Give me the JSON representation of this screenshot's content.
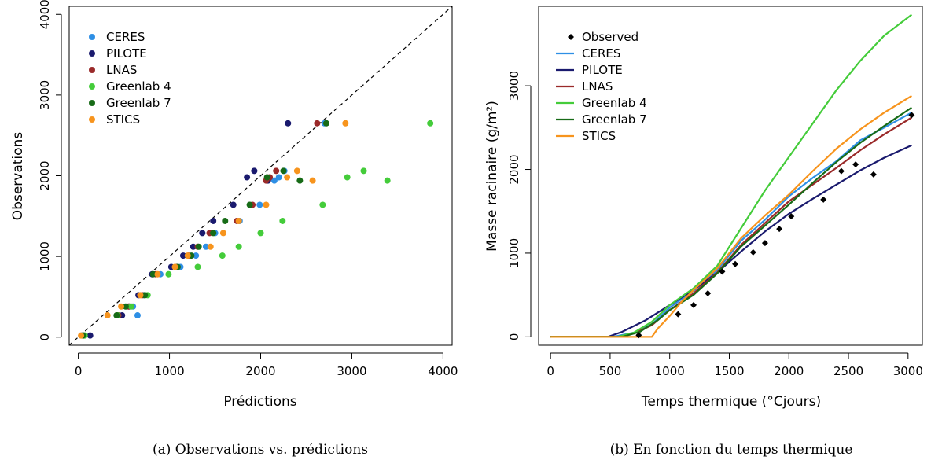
{
  "chart_data": [
    {
      "type": "scatter",
      "xlabel": "Prédictions",
      "ylabel": "Observations",
      "caption": "(a)  Observations vs. prédictions",
      "xlim": [
        -100,
        4100
      ],
      "ylim": [
        -100,
        4100
      ],
      "xticks": [
        0,
        1000,
        2000,
        3000,
        4000
      ],
      "yticks": [
        0,
        1000,
        2000,
        3000,
        4000
      ],
      "legend_position": "top-left",
      "reference_line": "y = x, dashed",
      "observations": [
        20,
        270,
        380,
        520,
        780,
        870,
        1010,
        1120,
        1290,
        1440,
        1640,
        1940,
        1980,
        2060,
        2650
      ],
      "series": [
        {
          "name": "CERES",
          "color": "#2e8fe5",
          "x": [
            40,
            650,
            600,
            720,
            900,
            1120,
            1290,
            1400,
            1500,
            1770,
            1990,
            2150,
            2200,
            2260,
            2700
          ]
        },
        {
          "name": "PILOTE",
          "color": "#1a1a6e",
          "x": [
            130,
            480,
            560,
            660,
            810,
            1020,
            1150,
            1260,
            1360,
            1480,
            1700,
            2080,
            1850,
            1930,
            2300
          ]
        },
        {
          "name": "LNAS",
          "color": "#9a2a2a",
          "x": [
            60,
            440,
            550,
            700,
            850,
            1080,
            1210,
            1310,
            1440,
            1740,
            1910,
            2060,
            2100,
            2170,
            2620
          ]
        },
        {
          "name": "Greenlab 4",
          "color": "#44cc3a",
          "x": [
            70,
            430,
            580,
            760,
            990,
            1310,
            1580,
            1760,
            2000,
            2240,
            2680,
            3390,
            2950,
            3130,
            3860
          ]
        },
        {
          "name": "Greenlab 7",
          "color": "#176b17",
          "x": [
            50,
            420,
            520,
            730,
            820,
            1090,
            1240,
            1320,
            1480,
            1610,
            1880,
            2430,
            2070,
            2250,
            2720
          ]
        },
        {
          "name": "STICS",
          "color": "#f7941d",
          "x": [
            30,
            320,
            470,
            680,
            870,
            1060,
            1200,
            1450,
            1590,
            1760,
            2060,
            2570,
            2290,
            2400,
            2930
          ]
        }
      ]
    },
    {
      "type": "line",
      "xlabel": "Temps thermique (°Cjours)",
      "ylabel": "Masse racinaire (g/m²)",
      "caption": "(b)  En fonction du temps thermique",
      "xlim": [
        -100,
        3120
      ],
      "ylim": [
        -100,
        3950
      ],
      "xticks": [
        0,
        500,
        1000,
        1500,
        2000,
        2500,
        3000
      ],
      "yticks": [
        0,
        1000,
        2000,
        3000
      ],
      "legend_position": "top-left",
      "observed": {
        "name": "Observed",
        "x": [
          740,
          1070,
          1200,
          1320,
          1440,
          1550,
          1700,
          1800,
          1920,
          2020,
          2290,
          2440,
          2560,
          2710,
          3030
        ],
        "y": [
          20,
          270,
          380,
          520,
          780,
          870,
          1010,
          1120,
          1290,
          1440,
          1640,
          1980,
          2060,
          1940,
          2650
        ]
      },
      "series": [
        {
          "name": "CERES",
          "color": "#2e8fe5",
          "x": [
            0,
            520,
            700,
            850,
            1000,
            1200,
            1400,
            1600,
            1800,
            2000,
            2200,
            2400,
            2600,
            2800,
            3030
          ],
          "y": [
            0,
            0,
            50,
            150,
            350,
            550,
            800,
            1150,
            1400,
            1680,
            1900,
            2100,
            2350,
            2500,
            2680
          ]
        },
        {
          "name": "PILOTE",
          "color": "#1a1a6e",
          "x": [
            0,
            480,
            600,
            800,
            1000,
            1200,
            1400,
            1600,
            1800,
            2000,
            2200,
            2400,
            2600,
            2800,
            3030
          ],
          "y": [
            0,
            0,
            60,
            200,
            380,
            560,
            770,
            1020,
            1260,
            1470,
            1650,
            1820,
            1990,
            2140,
            2290
          ]
        },
        {
          "name": "LNAS",
          "color": "#9a2a2a",
          "x": [
            0,
            560,
            700,
            850,
            1000,
            1200,
            1400,
            1600,
            1800,
            2000,
            2200,
            2400,
            2600,
            2800,
            3030
          ],
          "y": [
            0,
            0,
            40,
            140,
            320,
            520,
            770,
            1100,
            1360,
            1620,
            1820,
            2020,
            2230,
            2420,
            2620
          ]
        },
        {
          "name": "Greenlab 4",
          "color": "#44cc3a",
          "x": [
            0,
            560,
            700,
            850,
            1000,
            1200,
            1400,
            1600,
            1800,
            2000,
            2200,
            2400,
            2600,
            2800,
            3030
          ],
          "y": [
            0,
            0,
            50,
            180,
            380,
            580,
            850,
            1300,
            1750,
            2150,
            2550,
            2950,
            3300,
            3600,
            3850
          ]
        },
        {
          "name": "Greenlab 7",
          "color": "#176b17",
          "x": [
            0,
            600,
            750,
            900,
            1000,
            1200,
            1400,
            1600,
            1800,
            2000,
            2200,
            2400,
            2600,
            2800,
            3030
          ],
          "y": [
            0,
            0,
            60,
            200,
            320,
            500,
            760,
            1080,
            1330,
            1580,
            1840,
            2090,
            2320,
            2520,
            2740
          ]
        },
        {
          "name": "STICS",
          "color": "#f7941d",
          "x": [
            0,
            850,
            900,
            1000,
            1100,
            1200,
            1400,
            1600,
            1800,
            2000,
            2200,
            2400,
            2600,
            2800,
            3030
          ],
          "y": [
            0,
            0,
            100,
            250,
            420,
            560,
            820,
            1180,
            1450,
            1700,
            1980,
            2250,
            2480,
            2680,
            2880
          ]
        }
      ]
    }
  ]
}
